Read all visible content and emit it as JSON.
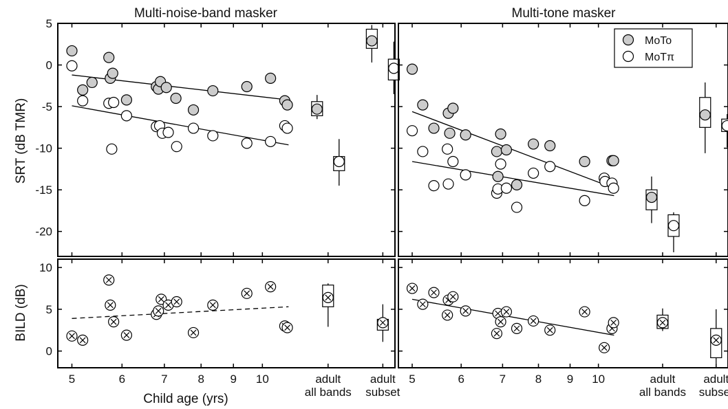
{
  "chart_data": [
    {
      "panel": "srt-left",
      "type": "scatter",
      "title": "Multi-noise-band masker",
      "ylabel": "SRT (dB TMR)",
      "ylim": [
        -23,
        5
      ],
      "yticks": [
        "5",
        "0",
        "-5",
        "-10",
        "-15",
        "-20"
      ],
      "series": [
        {
          "name": "MoTo",
          "key": "moto",
          "fill": "#cccccc",
          "points": [
            [
              5.0,
              1.7
            ],
            [
              5.2,
              -3.0
            ],
            [
              5.38,
              -2.1
            ],
            [
              5.72,
              0.9
            ],
            [
              5.75,
              -1.6
            ],
            [
              5.8,
              -1.0
            ],
            [
              6.1,
              -4.2
            ],
            [
              6.8,
              -2.6
            ],
            [
              6.85,
              -2.9
            ],
            [
              6.9,
              -2.0
            ],
            [
              7.05,
              -2.7
            ],
            [
              7.3,
              -4.0
            ],
            [
              7.78,
              -5.4
            ],
            [
              8.35,
              -3.1
            ],
            [
              9.45,
              -2.6
            ],
            [
              10.3,
              -1.6
            ],
            [
              10.85,
              -4.3
            ],
            [
              10.95,
              -4.8
            ]
          ]
        },
        {
          "name": "MoTπ",
          "key": "motpi",
          "fill": "#ffffff",
          "points": [
            [
              5.0,
              -0.1
            ],
            [
              5.2,
              -4.3
            ],
            [
              5.72,
              -4.6
            ],
            [
              5.78,
              -10.1
            ],
            [
              5.82,
              -4.5
            ],
            [
              6.1,
              -6.1
            ],
            [
              6.8,
              -7.4
            ],
            [
              6.88,
              -7.3
            ],
            [
              6.95,
              -8.2
            ],
            [
              7.1,
              -8.1
            ],
            [
              7.32,
              -9.8
            ],
            [
              7.78,
              -7.6
            ],
            [
              8.35,
              -8.5
            ],
            [
              9.45,
              -9.4
            ],
            [
              10.3,
              -9.2
            ],
            [
              10.85,
              -7.3
            ],
            [
              10.95,
              -7.6
            ]
          ]
        }
      ],
      "fits": [
        {
          "key": "moto",
          "from": [
            5.0,
            -1.2
          ],
          "to": [
            11.0,
            -4.2
          ]
        },
        {
          "key": "motpi",
          "from": [
            5.0,
            -4.9
          ],
          "to": [
            11.0,
            -9.6
          ]
        }
      ],
      "adult_boxes": [
        {
          "group": "all bands",
          "key": "moto",
          "median": -5.3,
          "q1": -6.1,
          "q3": -4.4,
          "lo": -6.5,
          "hi": -3.6
        },
        {
          "group": "all bands",
          "key": "motpi",
          "median": -11.6,
          "q1": -12.7,
          "q3": -11.0,
          "lo": -14.5,
          "hi": -8.9
        },
        {
          "group": "subset",
          "key": "moto",
          "median": 2.9,
          "q1": 2.0,
          "q3": 4.3,
          "lo": 0.3,
          "hi": 4.8
        },
        {
          "group": "subset",
          "key": "motpi",
          "median": -0.4,
          "q1": -1.8,
          "q3": 0.7,
          "lo": -3.5,
          "hi": 2.8
        }
      ]
    },
    {
      "panel": "srt-right",
      "type": "scatter",
      "title": "Multi-tone masker",
      "ylim": [
        -23,
        5
      ],
      "legend": "top-right",
      "series": [
        {
          "name": "MoTo",
          "key": "moto",
          "fill": "#cccccc",
          "points": [
            [
              5.0,
              -0.5
            ],
            [
              5.2,
              -4.8
            ],
            [
              5.42,
              -7.6
            ],
            [
              5.72,
              -5.8
            ],
            [
              5.75,
              -8.2
            ],
            [
              5.82,
              -5.2
            ],
            [
              6.1,
              -8.4
            ],
            [
              6.85,
              -10.4
            ],
            [
              6.88,
              -13.4
            ],
            [
              6.95,
              -8.3
            ],
            [
              7.1,
              -10.2
            ],
            [
              7.38,
              -14.4
            ],
            [
              7.85,
              -9.5
            ],
            [
              8.35,
              -9.7
            ],
            [
              9.5,
              -11.6
            ],
            [
              10.52,
              -11.5
            ],
            [
              10.58,
              -11.5
            ]
          ]
        },
        {
          "name": "MoTπ",
          "key": "motpi",
          "fill": "#ffffff",
          "points": [
            [
              5.0,
              -7.9
            ],
            [
              5.2,
              -10.4
            ],
            [
              5.42,
              -14.5
            ],
            [
              5.7,
              -10.1
            ],
            [
              5.72,
              -14.3
            ],
            [
              5.82,
              -11.6
            ],
            [
              6.1,
              -13.2
            ],
            [
              6.85,
              -15.4
            ],
            [
              6.88,
              -14.9
            ],
            [
              6.95,
              -11.9
            ],
            [
              7.1,
              -14.8
            ],
            [
              7.38,
              -17.1
            ],
            [
              7.85,
              -13.0
            ],
            [
              8.35,
              -12.2
            ],
            [
              9.5,
              -16.3
            ],
            [
              10.22,
              -13.6
            ],
            [
              10.25,
              -14.0
            ],
            [
              10.52,
              -14.2
            ],
            [
              10.58,
              -14.8
            ]
          ]
        }
      ],
      "fits": [
        {
          "key": "moto",
          "from": [
            5.0,
            -5.6
          ],
          "to": [
            10.6,
            -14.8
          ]
        },
        {
          "key": "motpi",
          "from": [
            5.0,
            -11.6
          ],
          "to": [
            10.6,
            -15.7
          ]
        }
      ],
      "adult_boxes": [
        {
          "group": "all bands",
          "key": "moto",
          "median": -15.9,
          "q1": -17.4,
          "q3": -15.0,
          "lo": -19.0,
          "hi": -13.4
        },
        {
          "group": "all bands",
          "key": "motpi",
          "median": -19.3,
          "q1": -20.6,
          "q3": -18.0,
          "lo": -22.5,
          "hi": -17.7
        },
        {
          "group": "subset",
          "key": "moto",
          "median": -6.0,
          "q1": -7.5,
          "q3": -3.9,
          "lo": -10.6,
          "hi": -2.1
        },
        {
          "group": "subset",
          "key": "motpi",
          "median": -7.3,
          "q1": -8.0,
          "q3": -6.5,
          "lo": -9.9,
          "hi": -5.9
        }
      ]
    },
    {
      "panel": "bild-left",
      "type": "scatter",
      "ylabel": "BILD (dB)",
      "ylim": [
        -2,
        11
      ],
      "yticks": [
        "10",
        "5",
        "0"
      ],
      "series": [
        {
          "name": "BILD",
          "key": "bild",
          "points": [
            [
              5.0,
              1.8
            ],
            [
              5.2,
              1.3
            ],
            [
              5.72,
              8.5
            ],
            [
              5.75,
              5.5
            ],
            [
              5.82,
              3.5
            ],
            [
              6.1,
              1.9
            ],
            [
              6.8,
              4.4
            ],
            [
              6.85,
              4.8
            ],
            [
              6.92,
              6.2
            ],
            [
              7.1,
              5.5
            ],
            [
              7.32,
              5.9
            ],
            [
              7.78,
              2.2
            ],
            [
              8.35,
              5.5
            ],
            [
              9.45,
              6.9
            ],
            [
              10.3,
              7.7
            ],
            [
              10.85,
              3.0
            ],
            [
              10.95,
              2.8
            ]
          ]
        }
      ],
      "fits": [
        {
          "key": "bild",
          "dashed": true,
          "from": [
            5.0,
            3.9
          ],
          "to": [
            11.0,
            5.3
          ]
        }
      ],
      "adult_boxes": [
        {
          "group": "all bands",
          "key": "bild",
          "median": 6.4,
          "q1": 5.3,
          "q3": 7.9,
          "lo": 2.9,
          "hi": 8.1
        },
        {
          "group": "subset",
          "key": "bild",
          "median": 3.4,
          "q1": 2.5,
          "q3": 3.8,
          "lo": 1.1,
          "hi": 5.6
        }
      ]
    },
    {
      "panel": "bild-right",
      "type": "scatter",
      "ylim": [
        -2,
        11
      ],
      "series": [
        {
          "name": "BILD",
          "key": "bild",
          "points": [
            [
              5.0,
              7.5
            ],
            [
              5.2,
              5.6
            ],
            [
              5.42,
              7.0
            ],
            [
              5.7,
              4.3
            ],
            [
              5.72,
              6.1
            ],
            [
              5.82,
              6.5
            ],
            [
              6.1,
              4.8
            ],
            [
              6.85,
              2.1
            ],
            [
              6.88,
              4.5
            ],
            [
              6.95,
              3.5
            ],
            [
              7.1,
              4.7
            ],
            [
              7.38,
              2.7
            ],
            [
              7.85,
              3.6
            ],
            [
              8.35,
              2.5
            ],
            [
              9.5,
              4.7
            ],
            [
              10.22,
              0.4
            ],
            [
              10.52,
              2.7
            ],
            [
              10.58,
              3.4
            ]
          ]
        }
      ],
      "fits": [
        {
          "key": "bild",
          "from": [
            5.0,
            6.2
          ],
          "to": [
            10.6,
            1.9
          ]
        }
      ],
      "adult_boxes": [
        {
          "group": "all bands",
          "key": "bild",
          "median": 3.4,
          "q1": 2.7,
          "q3": 4.3,
          "lo": 2.4,
          "hi": 5.1
        },
        {
          "group": "subset",
          "key": "bild",
          "median": 1.3,
          "q1": -0.8,
          "q3": 2.7,
          "lo": -1.5,
          "hi": 5.0
        }
      ]
    }
  ],
  "xaxis": {
    "scale": "log",
    "xlim": [
      4.75,
      16.2
    ],
    "ticks": [
      5,
      6,
      7,
      8,
      9,
      10
    ],
    "tick_labels": [
      "5",
      "6",
      "7",
      "8",
      "9",
      "10"
    ],
    "adult_all_bands_x": 12.7,
    "adult_subset_x": 15.5,
    "adult_label": "adult",
    "all_bands_label": "all bands",
    "subset_label": "subset",
    "xlabel": "Child age (yrs)"
  },
  "legend": {
    "moto": "MoTo",
    "motpi": "MoTπ"
  }
}
